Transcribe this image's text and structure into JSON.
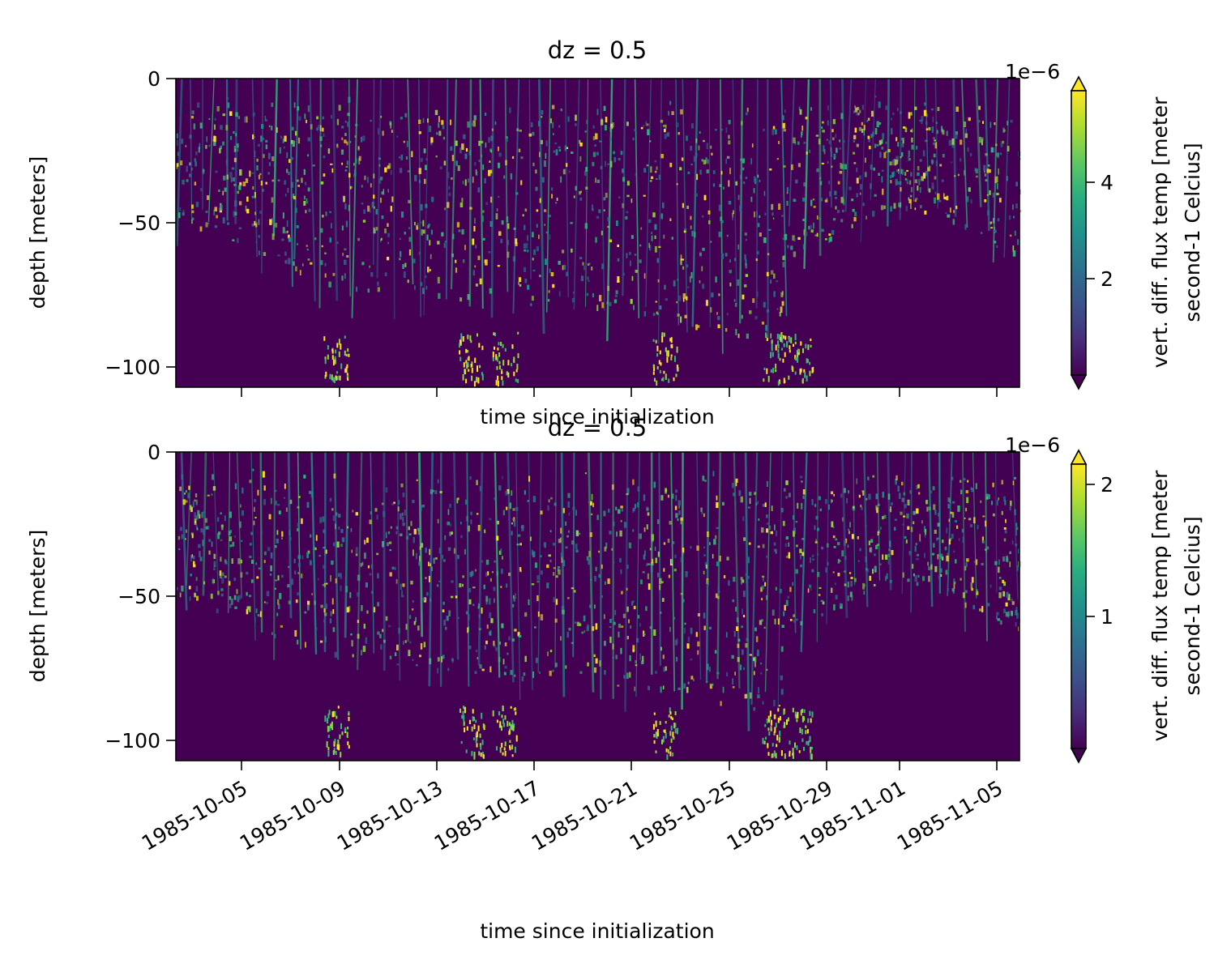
{
  "chart_data": [
    {
      "type": "heatmap",
      "title": "dz = 0.5",
      "xlabel": "time since initialization",
      "ylabel": "depth [meters]",
      "y_ticks": [
        0,
        -50,
        -100
      ],
      "y_tick_labels": [
        "0",
        "−50",
        "−100"
      ],
      "ylim": [
        -108,
        0
      ],
      "xlim": [
        "1985-10-02T12:00",
        "1985-11-06T23:00"
      ],
      "x_ticks": [
        "1985-10-05",
        "1985-10-09",
        "1985-10-13",
        "1985-10-17",
        "1985-10-21",
        "1985-10-25",
        "1985-10-29",
        "1985-11-01",
        "1985-11-05"
      ],
      "x_tick_labels_visible": false,
      "colormap": "viridis",
      "colorbar": {
        "label_line1": "vert. diff. flux temp [meter",
        "label_line2": "second-1 Celcius]",
        "multiplier": "1e−6",
        "range": [
          0.1,
          5.8
        ],
        "ticks": [
          2,
          4
        ],
        "tick_labels": [
          "2",
          "4"
        ],
        "extend": "both"
      }
    },
    {
      "type": "heatmap",
      "title": "dz = 0.5",
      "xlabel": "time since initialization",
      "ylabel": "depth [meters]",
      "y_ticks": [
        0,
        -50,
        -100
      ],
      "y_tick_labels": [
        "0",
        "−50",
        "−100"
      ],
      "ylim": [
        -108,
        0
      ],
      "xlim": [
        "1985-10-02T12:00",
        "1985-11-06T23:00"
      ],
      "x_ticks": [
        "1985-10-05",
        "1985-10-09",
        "1985-10-13",
        "1985-10-17",
        "1985-10-21",
        "1985-10-25",
        "1985-10-29",
        "1985-11-01",
        "1985-11-05"
      ],
      "x_tick_labels": [
        "1985-10-05",
        "1985-10-09",
        "1985-10-13",
        "1985-10-17",
        "1985-10-21",
        "1985-10-25",
        "1985-10-29",
        "1985-11-01",
        "1985-11-05"
      ],
      "x_tick_labels_visible": true,
      "colormap": "viridis",
      "colorbar": {
        "label_line1": "vert. diff. flux temp [meter",
        "label_line2": "second-1 Celcius]",
        "multiplier": "1e−6",
        "range": [
          0.05,
          2.2
        ],
        "ticks": [
          1,
          2
        ],
        "tick_labels": [
          "1",
          "2"
        ],
        "extend": "both"
      }
    }
  ]
}
